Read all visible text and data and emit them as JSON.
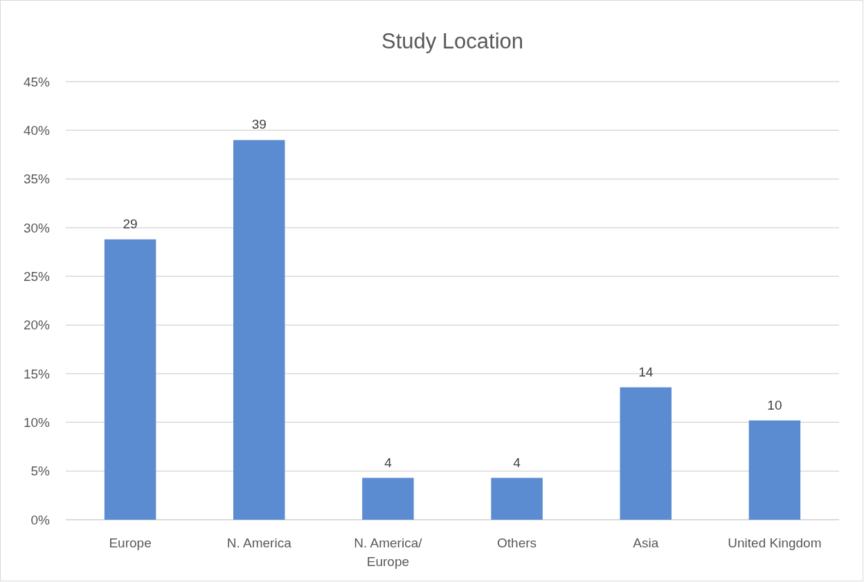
{
  "chart_data": {
    "type": "bar",
    "title": "Study Location",
    "categories": [
      "Europe",
      "N. America",
      "N. America/ Europe",
      "Others",
      "Asia",
      "United Kingdom"
    ],
    "values": [
      28.8,
      39,
      4.3,
      4.3,
      13.6,
      10.2
    ],
    "value_labels": [
      "29",
      "39",
      "4",
      "4",
      "14",
      "10"
    ],
    "color": "#5b8bd0",
    "ylim": [
      0,
      45
    ],
    "yticks": [
      {
        "value": 0,
        "label": "0%"
      },
      {
        "value": 5,
        "label": "5%"
      },
      {
        "value": 10,
        "label": "10%"
      },
      {
        "value": 15,
        "label": "15%"
      },
      {
        "value": 20,
        "label": "20%"
      },
      {
        "value": 25,
        "label": "25%"
      },
      {
        "value": 30,
        "label": "30%"
      },
      {
        "value": 35,
        "label": "35%"
      },
      {
        "value": 40,
        "label": "40%"
      },
      {
        "value": 45,
        "label": "45%"
      }
    ],
    "grid": "y"
  }
}
